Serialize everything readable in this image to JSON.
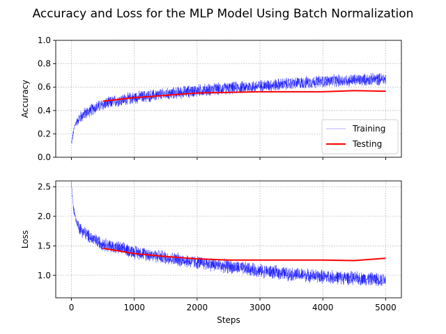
{
  "figure": {
    "title": "Accuracy and Loss for the MLP Model Using Batch Normalization"
  },
  "chart_data": [
    {
      "type": "line",
      "ylabel": "Accuracy",
      "xlabel": "",
      "xlim": [
        -250,
        5250
      ],
      "ylim": [
        0.0,
        1.0
      ],
      "x_ticks": [
        0,
        1000,
        2000,
        3000,
        4000,
        5000
      ],
      "y_ticks": [
        0.0,
        0.2,
        0.4,
        0.6,
        0.8,
        1.0
      ],
      "y_tick_labels": [
        "0.0",
        "0.2",
        "0.4",
        "0.6",
        "0.8",
        "1.0"
      ],
      "grid": true,
      "legend": {
        "placement": "lower-right",
        "entries": [
          {
            "label": "Training",
            "color": "#b3b3ff"
          },
          {
            "label": "Testing",
            "color": "#ff0000"
          }
        ]
      },
      "series": [
        {
          "name": "Training",
          "color": "#0000ff",
          "style": "noisy-dense",
          "trend_x": [
            0,
            50,
            100,
            200,
            300,
            400,
            500,
            700,
            1000,
            1500,
            2000,
            2500,
            3000,
            3500,
            4000,
            4500,
            5000
          ],
          "trend_y": [
            0.12,
            0.27,
            0.32,
            0.37,
            0.4,
            0.43,
            0.45,
            0.48,
            0.51,
            0.54,
            0.57,
            0.59,
            0.61,
            0.63,
            0.65,
            0.66,
            0.67
          ],
          "noise_amplitude": 0.06
        },
        {
          "name": "Testing",
          "color": "#ff0000",
          "x": [
            500,
            1000,
            1500,
            2000,
            2500,
            3000,
            3500,
            4000,
            4500,
            5000
          ],
          "y": [
            0.48,
            0.51,
            0.53,
            0.55,
            0.555,
            0.56,
            0.56,
            0.56,
            0.57,
            0.565
          ]
        }
      ]
    },
    {
      "type": "line",
      "ylabel": "Loss",
      "xlabel": "Steps",
      "xlim": [
        -250,
        5250
      ],
      "ylim": [
        0.62,
        2.6
      ],
      "x_ticks": [
        0,
        1000,
        2000,
        3000,
        4000,
        5000
      ],
      "y_ticks": [
        1.0,
        1.5,
        2.0,
        2.5
      ],
      "y_tick_labels": [
        "1.0",
        "1.5",
        "2.0",
        "2.5"
      ],
      "x_tick_labels": [
        "0",
        "1000",
        "2000",
        "3000",
        "4000",
        "5000"
      ],
      "grid": true,
      "series": [
        {
          "name": "Training",
          "color": "#0000ff",
          "style": "noisy-dense",
          "trend_x": [
            0,
            30,
            80,
            150,
            250,
            400,
            600,
            1000,
            1500,
            2000,
            2500,
            3000,
            3500,
            4000,
            4500,
            5000
          ],
          "trend_y": [
            2.55,
            2.15,
            1.9,
            1.78,
            1.68,
            1.58,
            1.5,
            1.4,
            1.3,
            1.22,
            1.15,
            1.08,
            1.02,
            0.98,
            0.95,
            0.93
          ],
          "noise_amplitude": 0.13
        },
        {
          "name": "Testing",
          "color": "#ff0000",
          "x": [
            500,
            1000,
            1500,
            2000,
            2500,
            3000,
            3500,
            4000,
            4500,
            5000
          ],
          "y": [
            1.46,
            1.37,
            1.32,
            1.28,
            1.26,
            1.26,
            1.26,
            1.26,
            1.25,
            1.29
          ]
        }
      ]
    }
  ]
}
